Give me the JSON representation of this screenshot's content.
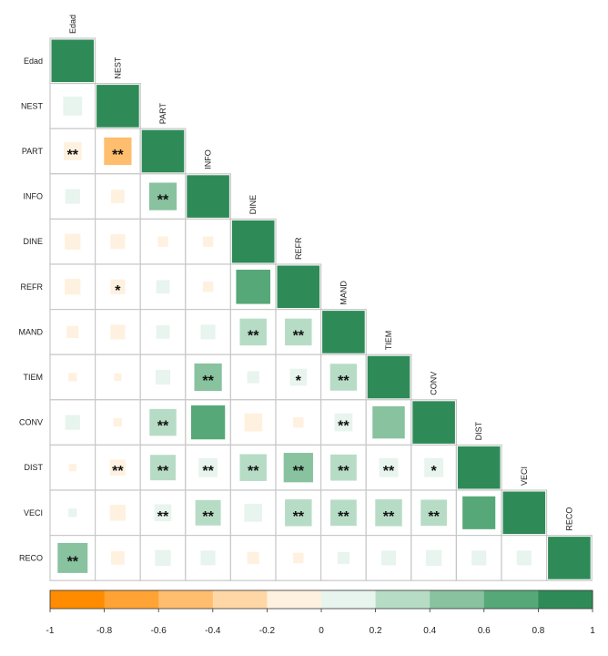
{
  "chart_data": {
    "type": "heatmap",
    "variables": [
      "Edad",
      "NEST",
      "PART",
      "INFO",
      "DINE",
      "REFR",
      "MAND",
      "TIEM",
      "CONV",
      "DIST",
      "VECI",
      "RECO"
    ],
    "matrix": [
      [
        1.0
      ],
      [
        0.2,
        1.0
      ],
      [
        -0.18,
        -0.42,
        1.0
      ],
      [
        0.12,
        -0.1,
        0.42,
        1.0
      ],
      [
        -0.14,
        -0.12,
        -0.06,
        -0.06,
        1.0
      ],
      [
        -0.14,
        -0.12,
        0.1,
        -0.06,
        0.65,
        1.0
      ],
      [
        -0.08,
        -0.12,
        0.1,
        0.12,
        0.4,
        0.4,
        1.0
      ],
      [
        -0.04,
        -0.03,
        0.12,
        0.42,
        0.08,
        0.16,
        0.4,
        1.0
      ],
      [
        0.12,
        -0.04,
        0.4,
        0.64,
        -0.18,
        -0.06,
        0.18,
        0.58,
        1.0
      ],
      [
        -0.03,
        -0.14,
        0.36,
        0.2,
        0.4,
        0.48,
        0.38,
        0.2,
        0.2,
        1.0
      ],
      [
        0.04,
        -0.14,
        0.16,
        0.36,
        0.18,
        0.4,
        0.38,
        0.4,
        0.38,
        0.6,
        1.0
      ],
      [
        0.5,
        -0.1,
        0.14,
        0.12,
        -0.08,
        -0.06,
        0.08,
        0.12,
        0.14,
        0.12,
        0.12,
        1.0
      ]
    ],
    "significance": [
      [
        ""
      ],
      [
        "",
        ""
      ],
      [
        "**",
        "**",
        ""
      ],
      [
        "",
        "",
        "**",
        ""
      ],
      [
        "",
        "",
        "",
        "",
        ""
      ],
      [
        "",
        "*",
        "",
        "",
        "",
        ""
      ],
      [
        "",
        "",
        "",
        "",
        "**",
        "**",
        ""
      ],
      [
        "",
        "",
        "",
        "**",
        "",
        "*",
        "**",
        ""
      ],
      [
        "",
        "",
        "**",
        "",
        "",
        "",
        "**",
        "",
        ""
      ],
      [
        "",
        "**",
        "**",
        "**",
        "**",
        "**",
        "**",
        "**",
        "*",
        ""
      ],
      [
        "",
        "",
        "**",
        "**",
        "",
        "**",
        "**",
        "**",
        "**",
        "",
        ""
      ],
      [
        "**",
        "",
        "",
        "",
        "",
        "",
        "",
        "",
        "",
        "",
        "",
        ""
      ]
    ],
    "colorbar": {
      "ticks": [
        "-1",
        "-0.8",
        "-0.6",
        "-0.4",
        "-0.2",
        "0",
        "0.2",
        "0.4",
        "0.6",
        "0.8",
        "1"
      ],
      "range": [
        -1,
        1
      ],
      "colors": [
        "#FF8C00",
        "#FFA334",
        "#FFBD6E",
        "#FFD7A6",
        "#FFF1E0",
        "#E8F4EE",
        "#B7DCC6",
        "#88C29F",
        "#56A878",
        "#2E8B57"
      ]
    },
    "layout_style": "lower-triangle",
    "legend_position": "bottom"
  }
}
